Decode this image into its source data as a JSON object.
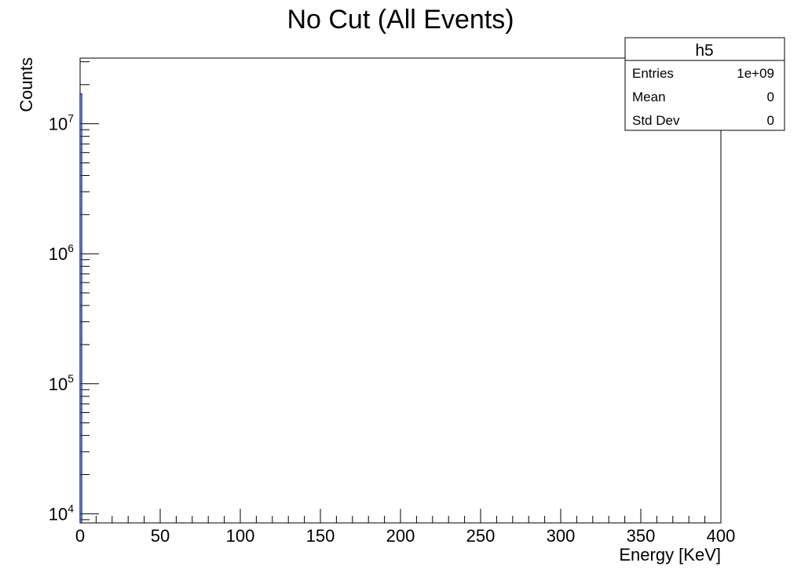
{
  "chart_data": {
    "type": "histogram",
    "title": "No Cut (All Events)",
    "xlabel": "Energy [KeV]",
    "ylabel": "Counts",
    "xlim": [
      0,
      400
    ],
    "ylim": [
      8500,
      32000000
    ],
    "y_scale": "log",
    "x_ticks": [
      "0",
      "50",
      "100",
      "150",
      "200",
      "250",
      "300",
      "350",
      "400"
    ],
    "y_ticks": [
      {
        "base": "10",
        "exp": "4"
      },
      {
        "base": "10",
        "exp": "5"
      },
      {
        "base": "10",
        "exp": "6"
      },
      {
        "base": "10",
        "exp": "7"
      }
    ],
    "bins": [
      {
        "x_low": 0,
        "x_high": 1,
        "count": 17000000
      }
    ],
    "line_color": "#1f3a93",
    "grid": false
  },
  "stats_box": {
    "name": "h5",
    "rows": [
      {
        "label": "Entries",
        "value": "1e+09"
      },
      {
        "label": "Mean",
        "value": "0"
      },
      {
        "label": "Std Dev",
        "value": "0"
      }
    ]
  }
}
